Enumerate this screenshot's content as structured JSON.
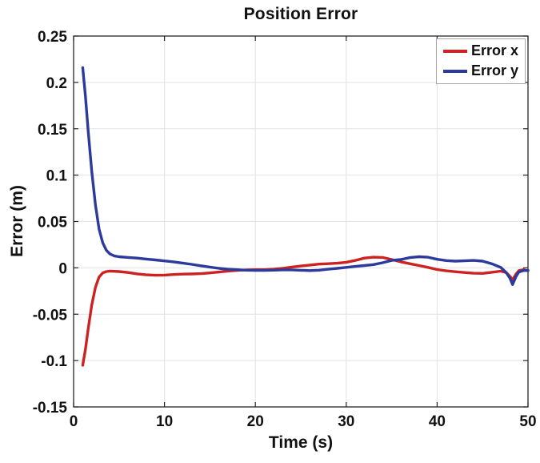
{
  "chart_data": {
    "type": "line",
    "title": "Position Error",
    "xlabel": "Time (s)",
    "ylabel": "Error (m)",
    "xlim": [
      0,
      50
    ],
    "ylim": [
      -0.15,
      0.25
    ],
    "xticks": [
      0,
      10,
      20,
      30,
      40,
      50
    ],
    "xtick_labels": [
      "0",
      "10",
      "20",
      "30",
      "40",
      "50"
    ],
    "yticks": [
      -0.15,
      -0.1,
      -0.05,
      0,
      0.05,
      0.1,
      0.15,
      0.2,
      0.25
    ],
    "ytick_labels": [
      "-0.15",
      "-0.1",
      "-0.05",
      "0",
      "0.05",
      "0.1",
      "0.15",
      "0.2",
      "0.25"
    ],
    "grid": true,
    "legend_position": "top-right",
    "colors": {
      "background": "#ffffff",
      "axis": "#262626",
      "grid": "#e2e2e2",
      "text": "#111111",
      "legend_border": "#a6a6a6"
    },
    "series": [
      {
        "name": "Error x",
        "color": "#cc2222",
        "points": [
          [
            1,
            -0.105
          ],
          [
            1.3,
            -0.088
          ],
          [
            1.6,
            -0.066
          ],
          [
            2,
            -0.04
          ],
          [
            2.4,
            -0.021
          ],
          [
            2.8,
            -0.01
          ],
          [
            3.2,
            -0.0055
          ],
          [
            3.6,
            -0.004
          ],
          [
            4,
            -0.0035
          ],
          [
            5,
            -0.004
          ],
          [
            6,
            -0.005
          ],
          [
            7,
            -0.0065
          ],
          [
            8,
            -0.0075
          ],
          [
            9,
            -0.008
          ],
          [
            10,
            -0.0078
          ],
          [
            11,
            -0.0072
          ],
          [
            12,
            -0.0068
          ],
          [
            13,
            -0.0066
          ],
          [
            14,
            -0.0062
          ],
          [
            15,
            -0.0055
          ],
          [
            16,
            -0.0045
          ],
          [
            17,
            -0.0035
          ],
          [
            18,
            -0.0028
          ],
          [
            19,
            -0.0022
          ],
          [
            20,
            -0.002
          ],
          [
            21,
            -0.002
          ],
          [
            22,
            -0.0015
          ],
          [
            23,
            -0.0005
          ],
          [
            24,
            0.0008
          ],
          [
            25,
            0.002
          ],
          [
            26,
            0.003
          ],
          [
            27,
            0.004
          ],
          [
            28,
            0.0045
          ],
          [
            29,
            0.005
          ],
          [
            30,
            0.006
          ],
          [
            31,
            0.008
          ],
          [
            32,
            0.0105
          ],
          [
            33,
            0.0115
          ],
          [
            34,
            0.0112
          ],
          [
            35,
            0.009
          ],
          [
            36,
            0.0065
          ],
          [
            37,
            0.0045
          ],
          [
            38,
            0.0025
          ],
          [
            39,
            0.0005
          ],
          [
            40,
            -0.0018
          ],
          [
            41,
            -0.0032
          ],
          [
            42,
            -0.0042
          ],
          [
            43,
            -0.005
          ],
          [
            44,
            -0.0058
          ],
          [
            45,
            -0.006
          ],
          [
            46,
            -0.0048
          ],
          [
            47,
            -0.0036
          ],
          [
            47.6,
            -0.005
          ],
          [
            48,
            -0.009
          ],
          [
            48.3,
            -0.013
          ],
          [
            48.7,
            -0.0065
          ],
          [
            49,
            -0.003
          ],
          [
            49.5,
            -0.002
          ],
          [
            50,
            -0.0032
          ]
        ]
      },
      {
        "name": "Error y",
        "color": "#2b3a9c",
        "points": [
          [
            1,
            0.216
          ],
          [
            1.3,
            0.185
          ],
          [
            1.6,
            0.148
          ],
          [
            2,
            0.104
          ],
          [
            2.4,
            0.068
          ],
          [
            2.8,
            0.042
          ],
          [
            3.2,
            0.027
          ],
          [
            3.6,
            0.019
          ],
          [
            4,
            0.015
          ],
          [
            4.5,
            0.0128
          ],
          [
            5,
            0.012
          ],
          [
            6,
            0.0112
          ],
          [
            7,
            0.0105
          ],
          [
            8,
            0.0095
          ],
          [
            9,
            0.0085
          ],
          [
            10,
            0.0075
          ],
          [
            11,
            0.0065
          ],
          [
            12,
            0.0052
          ],
          [
            13,
            0.0038
          ],
          [
            14,
            0.0022
          ],
          [
            15,
            0.0008
          ],
          [
            16,
            -0.0005
          ],
          [
            17,
            -0.0015
          ],
          [
            18,
            -0.002
          ],
          [
            19,
            -0.0025
          ],
          [
            20,
            -0.0028
          ],
          [
            21,
            -0.0028
          ],
          [
            22,
            -0.0025
          ],
          [
            23,
            -0.0022
          ],
          [
            24,
            -0.0022
          ],
          [
            25,
            -0.0026
          ],
          [
            26,
            -0.003
          ],
          [
            27,
            -0.0025
          ],
          [
            28,
            -0.0015
          ],
          [
            29,
            -0.0005
          ],
          [
            30,
            0.0005
          ],
          [
            31,
            0.0015
          ],
          [
            32,
            0.0025
          ],
          [
            33,
            0.0035
          ],
          [
            34,
            0.0055
          ],
          [
            35,
            0.008
          ],
          [
            36,
            0.009
          ],
          [
            37,
            0.011
          ],
          [
            38,
            0.012
          ],
          [
            39,
            0.0115
          ],
          [
            40,
            0.0092
          ],
          [
            41,
            0.0078
          ],
          [
            42,
            0.0072
          ],
          [
            43,
            0.0076
          ],
          [
            44,
            0.008
          ],
          [
            45,
            0.0072
          ],
          [
            46,
            0.0045
          ],
          [
            47,
            0.0005
          ],
          [
            47.6,
            -0.005
          ],
          [
            48,
            -0.011
          ],
          [
            48.3,
            -0.018
          ],
          [
            48.7,
            -0.009
          ],
          [
            49,
            -0.0045
          ],
          [
            49.5,
            -0.003
          ],
          [
            50,
            -0.0028
          ]
        ]
      }
    ]
  }
}
